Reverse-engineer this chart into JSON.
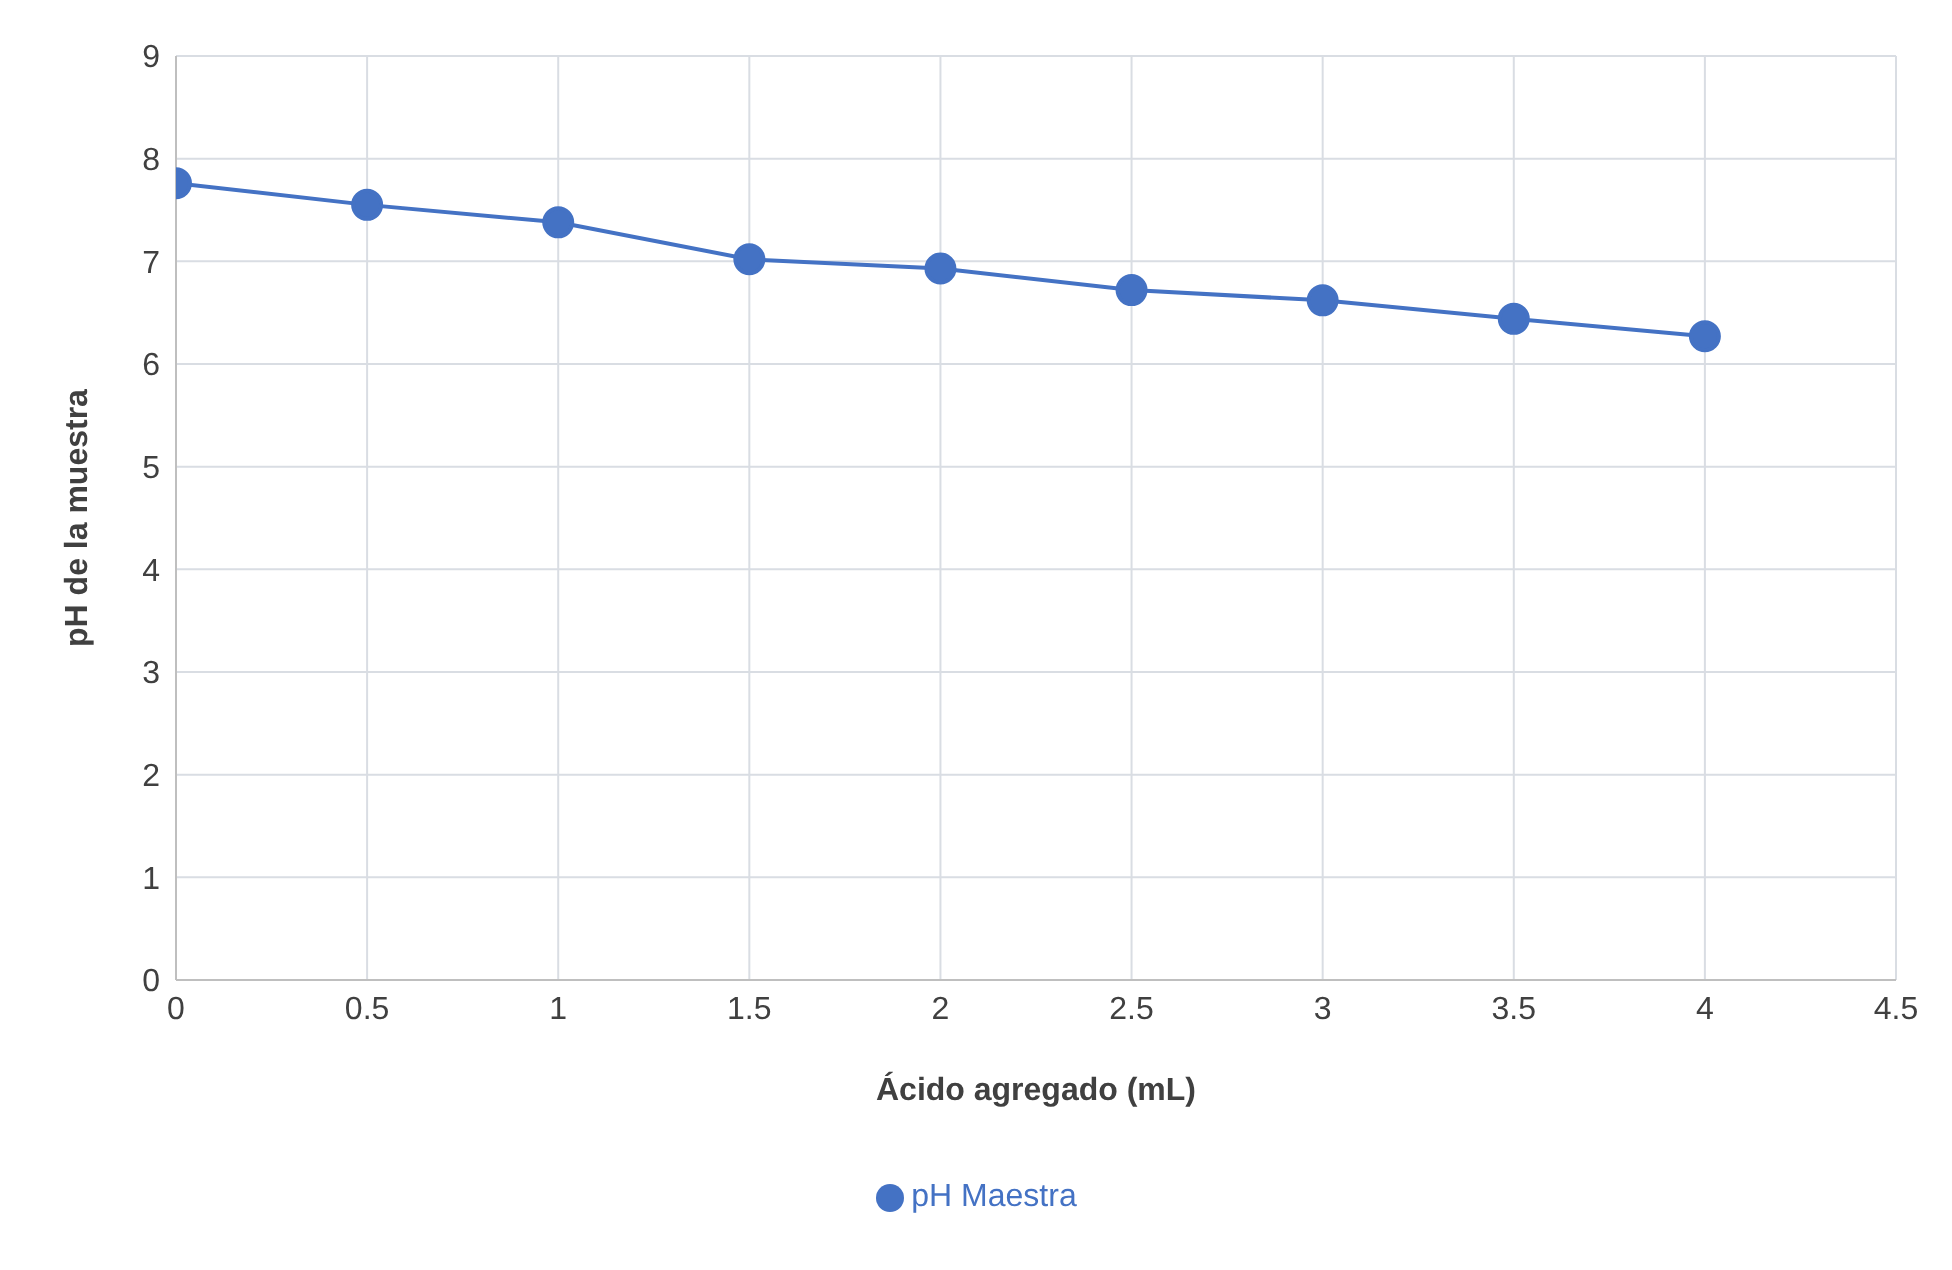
{
  "chart_data": {
    "type": "line",
    "xlabel": "Ácido agregado (mL)",
    "ylabel": "pH de la muestra",
    "x": [
      0,
      0.5,
      1,
      1.5,
      2,
      2.5,
      3,
      3.5,
      4
    ],
    "series": [
      {
        "name": "pH Maestra",
        "color": "#4472c4",
        "values": [
          7.76,
          7.55,
          7.38,
          7.02,
          6.93,
          6.72,
          6.62,
          6.44,
          6.27
        ]
      }
    ],
    "xlim": [
      0,
      4.5
    ],
    "xticks": [
      0,
      0.5,
      1,
      1.5,
      2,
      2.5,
      3,
      3.5,
      4,
      4.5
    ],
    "ylim": [
      0,
      9
    ],
    "yticks": [
      0,
      1,
      2,
      3,
      4,
      5,
      6,
      7,
      8,
      9
    ],
    "grid": true,
    "legend": "bottom",
    "marker": "circle",
    "line_style": "solid"
  }
}
